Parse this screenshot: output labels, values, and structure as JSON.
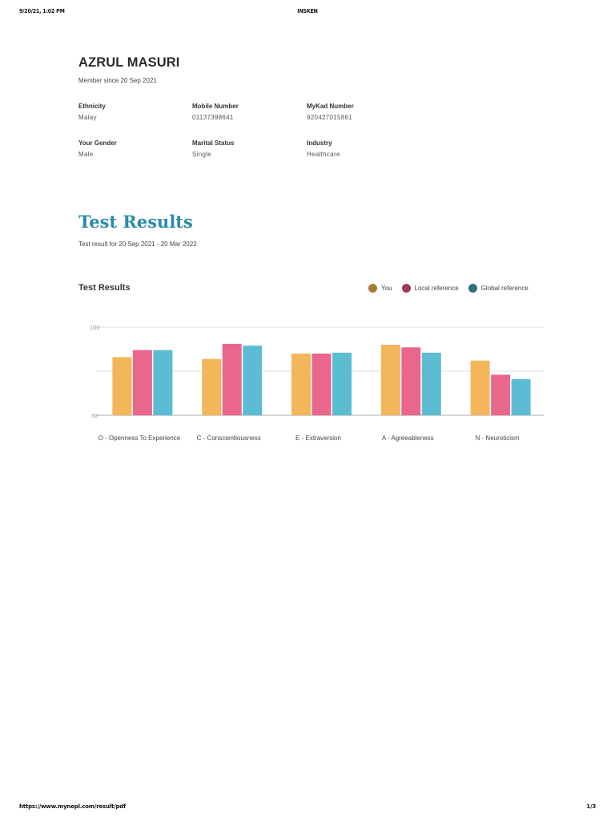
{
  "print_header": {
    "datetime": "9/20/21, 1:02 PM",
    "title": "INSKEN"
  },
  "print_footer": {
    "url": "https://www.mynepl.com/result/pdf",
    "page": "1/3"
  },
  "profile": {
    "name": "AZRUL MASURI",
    "member_since": "Member since 20 Sep 2021",
    "fields": [
      {
        "label": "Ethnicity",
        "value": "Malay"
      },
      {
        "label": "Mobile Number",
        "value": "01137398641"
      },
      {
        "label": "MyKad Number",
        "value": "920427015861"
      },
      {
        "label": "Your Gender",
        "value": "Male"
      },
      {
        "label": "Marital Status",
        "value": "Single"
      },
      {
        "label": "Industry",
        "value": "Healthcare"
      }
    ]
  },
  "results": {
    "title": "Test Results",
    "subtitle": "Test result for 20 Sep 2021 - 20 Mar 2022"
  },
  "chart_data": {
    "type": "bar",
    "title": "Test Results",
    "xlabel": "",
    "ylabel": "",
    "ylim": [
      50,
      100
    ],
    "yticks": [
      50,
      100
    ],
    "gridlines": [
      50,
      75,
      100
    ],
    "grid": true,
    "legend_position": "top-right",
    "categories": [
      "O - Openness To Experience",
      "C - Conscientiousness",
      "E - Extraversion",
      "A - Agreeableness",
      "N - Neuroticism"
    ],
    "series": [
      {
        "name": "You",
        "bar_color": "#f3b65b",
        "legend_color": "#a87a35",
        "values": [
          83,
          82,
          85,
          90,
          81
        ]
      },
      {
        "name": "Local reference",
        "bar_color": "#e9678c",
        "legend_color": "#9c3a59",
        "values": [
          87,
          90.5,
          85,
          88.5,
          73
        ]
      },
      {
        "name": "Global reference",
        "bar_color": "#5cbcd3",
        "legend_color": "#2f6f7e",
        "values": [
          87,
          89.5,
          85.5,
          85.5,
          70.5
        ]
      }
    ]
  },
  "colors": {
    "accent": "#2a8cad",
    "gridline": "#e2e2e2",
    "axis": "#aaaaaa"
  }
}
